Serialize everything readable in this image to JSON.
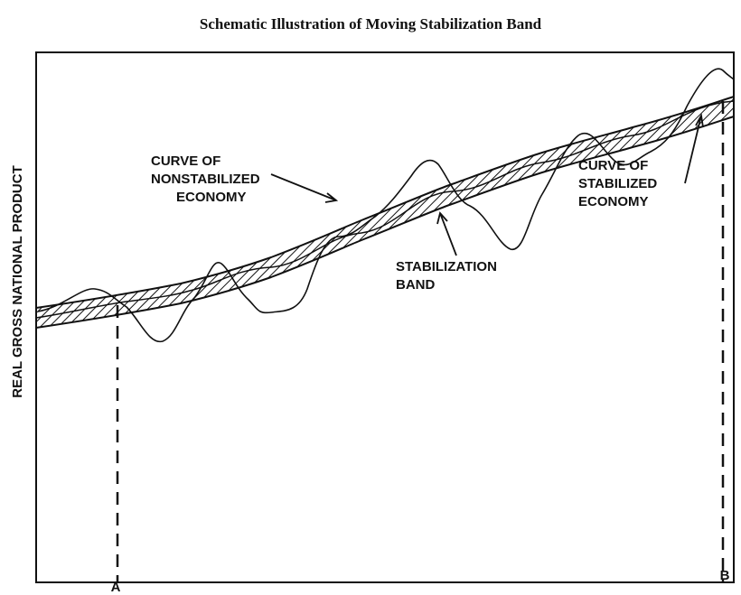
{
  "title": "Schematic Illustration of Moving Stabilization Band",
  "y_axis_label": "REAL GROSS NATIONAL PRODUCT",
  "annotations": {
    "nonstabilized": [
      "CURVE OF",
      "NONSTABILIZED",
      "ECONOMY"
    ],
    "band": [
      "STABILIZATION",
      "BAND"
    ],
    "stabilized": [
      "CURVE OF",
      "STABILIZED",
      "ECONOMY"
    ]
  },
  "markers": [
    "A",
    "B"
  ]
}
